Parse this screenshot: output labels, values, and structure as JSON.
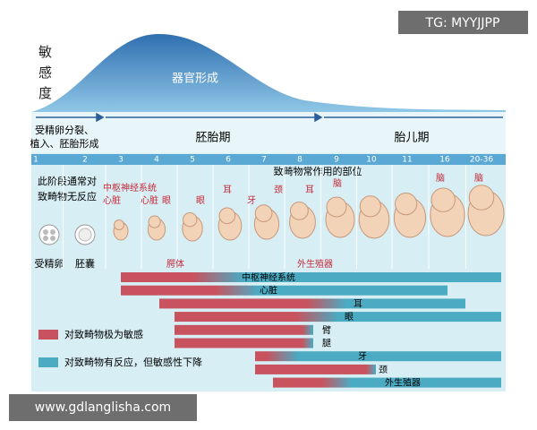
{
  "watermark_top": "TG: MYYJJPP",
  "watermark_bottom": "www.gdlanglisha.com",
  "curve": {
    "axis_label": "敏感度",
    "label": "器官形成"
  },
  "periods": {
    "early": [
      "受精卵分裂、",
      "植入、胚胎形成"
    ],
    "embryo": "胚胎期",
    "fetal": "胎儿期"
  },
  "weeks": [
    "1",
    "2",
    "3",
    "4",
    "5",
    "6",
    "7",
    "8",
    "9",
    "10",
    "11",
    "16",
    "20-36"
  ],
  "no_reaction": [
    "此阶段通常对",
    "致畸物无反应"
  ],
  "stages": [
    "受精卵",
    "胚囊"
  ],
  "sites_title": "致畸物常作用的部位",
  "site_labels": [
    "中枢神经系统",
    "心脏",
    "心脏",
    "眼",
    "眼",
    "耳",
    "牙",
    "颈",
    "耳",
    "脑",
    "脑",
    "脑",
    "腭体",
    "外生殖器"
  ],
  "bars": [
    "中枢神经系统",
    "心脏",
    "耳",
    "眼",
    "臂",
    "腿",
    "牙",
    "颈",
    "外生殖器"
  ],
  "legend": [
    "对致畸物极为敏感",
    "对致畸物有反应，但敏感性下降"
  ]
}
